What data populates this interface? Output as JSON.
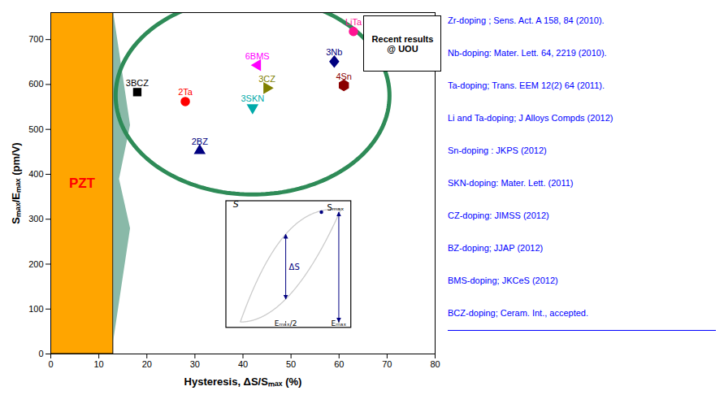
{
  "chart_data": {
    "type": "scatter",
    "xlabel": "Hysteresis, ΔS/Sₘₐₓ (%)",
    "ylabel": "Sₘₐₓ/Eₘₐₓ (pm/V)",
    "xlim": [
      0,
      80
    ],
    "ylim": [
      0,
      760
    ],
    "xticks": [
      0,
      10,
      20,
      30,
      40,
      50,
      60,
      70,
      80
    ],
    "yticks": [
      0,
      100,
      200,
      300,
      400,
      500,
      600,
      700
    ],
    "points": [
      {
        "label": "3BCZ",
        "x": 18,
        "y": 583,
        "marker": "square",
        "color": "black"
      },
      {
        "label": "2Ta",
        "x": 28,
        "y": 562,
        "marker": "circle",
        "color": "red"
      },
      {
        "label": "3SKN",
        "x": 42,
        "y": 548,
        "marker": "triangle-down",
        "color": "#00AAAA"
      },
      {
        "label": "3CZ",
        "x": 45,
        "y": 592,
        "marker": "triangle-right",
        "color": "#808000"
      },
      {
        "label": "6BMS",
        "x": 43,
        "y": 643,
        "marker": "triangle-left",
        "color": "magenta"
      },
      {
        "label": "3Nb",
        "x": 59,
        "y": 651,
        "marker": "diamond",
        "color": "navy"
      },
      {
        "label": "4Sn",
        "x": 61,
        "y": 598,
        "marker": "hexagon",
        "color": "#8B0000"
      },
      {
        "label": "LiTa",
        "x": 63,
        "y": 718,
        "marker": "circle",
        "color": "deeppink"
      },
      {
        "label": "2BZ",
        "x": 31,
        "y": 453,
        "marker": "triangle-up",
        "color": "navy"
      }
    ],
    "region": {
      "label": "PZT",
      "x": 0,
      "y": 0,
      "width": 13,
      "height": 760,
      "color": "#FFA500",
      "label_color": "red"
    },
    "arrow_shape": {
      "xs": [
        13.0,
        16.5,
        14.2,
        16.5,
        13.0
      ],
      "ys": [
        760,
        510,
        390,
        280,
        30
      ],
      "color": "#3A8B6E"
    },
    "ellipse": {
      "cx": 42,
      "cy": 575,
      "width": 57,
      "height": 440,
      "color": "#2E8B57"
    },
    "inset": {
      "s": "S",
      "s_max": "Sₘₐₓ",
      "delta_s": "ΔS",
      "e_half": "Eₘₐₓ/2",
      "e_max": "Eₘₐₓ",
      "color": "navy",
      "curve_color": "#CCCCCC"
    },
    "annotation": "Recent results\n@ UOU",
    "references": {
      "color": "blue",
      "lines": [
        "Zr-doping ; Sens. Act. A 158, 84 (2010).",
        "Nb-doping: Mater. Lett.  64, 2219 (2010).",
        "Ta-doping; Trans.  EEM 12(2) 64 (2011).",
        "Li and Ta-doping; J Alloys Compds (2012)",
        "Sn-doping : JKPS (2012)",
        "SKN-doping: Mater. Lett. (2011)",
        "CZ-doping: JIMSS (2012)",
        "BZ-doping; JJAP (2012)",
        "BMS-doping; JKCeS (2012)",
        "BCZ-doping; Ceram. Int., accepted."
      ]
    }
  }
}
